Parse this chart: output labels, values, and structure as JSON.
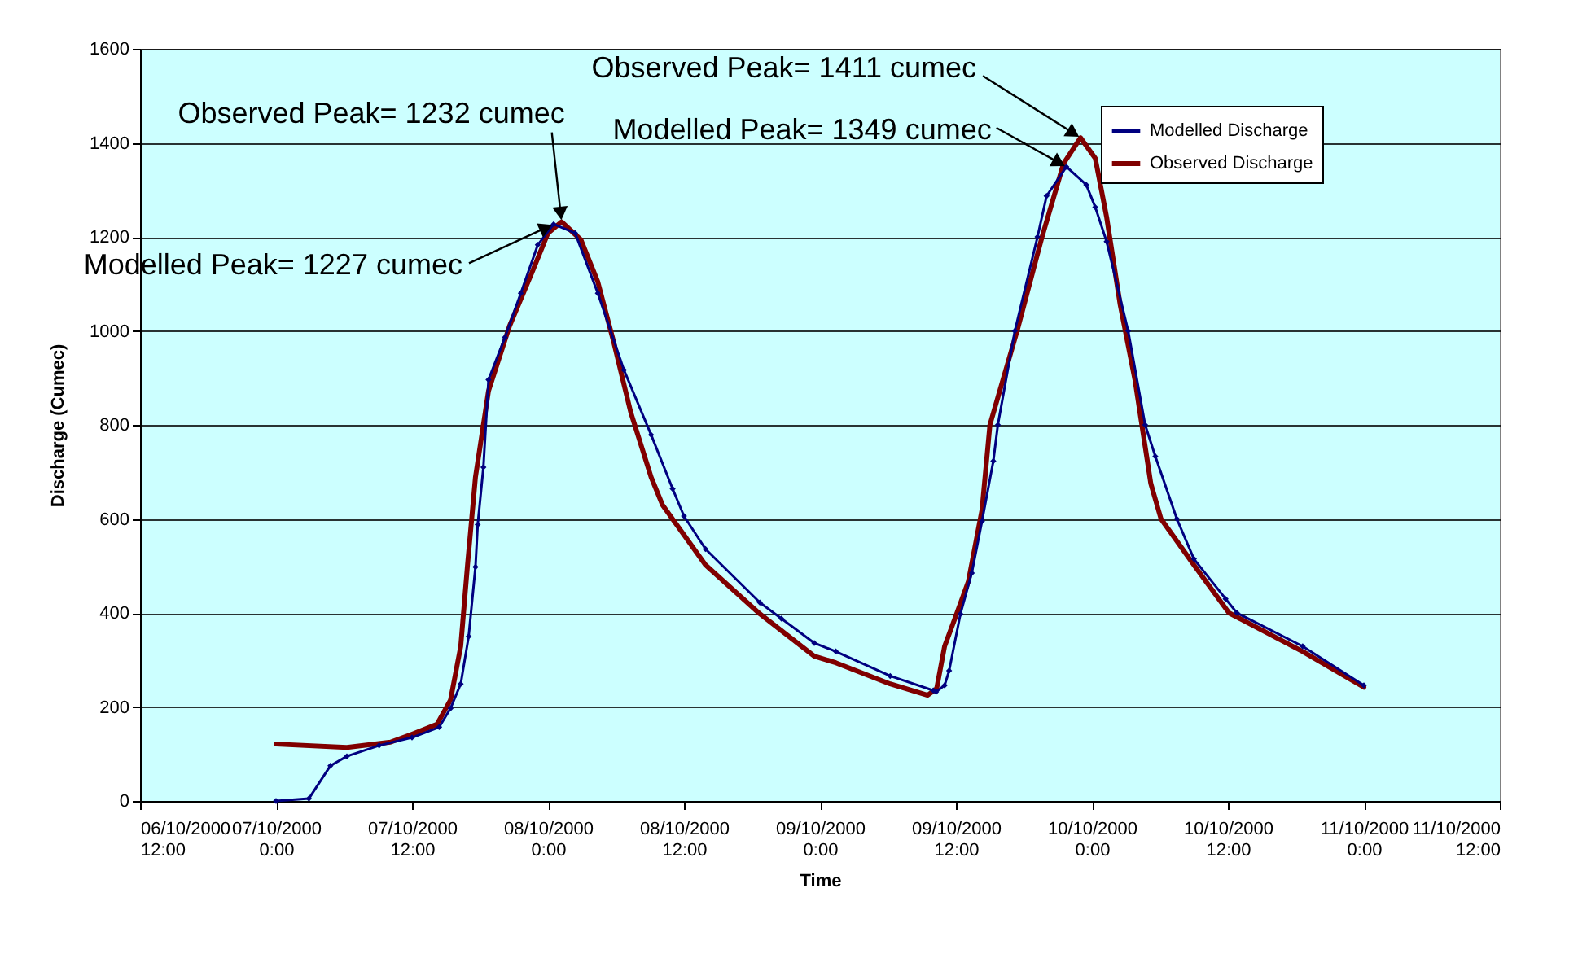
{
  "chart_data": {
    "type": "line",
    "xlabel": "Time",
    "ylabel": "Discharge (Cumec)",
    "xlim": [
      "2000-10-06T12:00",
      "2000-10-11T12:00"
    ],
    "xticks": [
      {
        "value": "2000-10-06T12:00",
        "label": "06/10/2000\n12:00"
      },
      {
        "value": "2000-10-07T00:00",
        "label": "07/10/2000\n0:00"
      },
      {
        "value": "2000-10-07T12:00",
        "label": "07/10/2000\n12:00"
      },
      {
        "value": "2000-10-08T00:00",
        "label": "08/10/2000\n0:00"
      },
      {
        "value": "2000-10-08T12:00",
        "label": "08/10/2000\n12:00"
      },
      {
        "value": "2000-10-09T00:00",
        "label": "09/10/2000\n0:00"
      },
      {
        "value": "2000-10-09T12:00",
        "label": "09/10/2000\n12:00"
      },
      {
        "value": "2000-10-10T00:00",
        "label": "10/10/2000\n0:00"
      },
      {
        "value": "2000-10-10T12:00",
        "label": "10/10/2000\n12:00"
      },
      {
        "value": "2000-10-11T00:00",
        "label": "11/10/2000\n0:00"
      },
      {
        "value": "2000-10-11T12:00",
        "label": "11/10/2000\n12:00"
      }
    ],
    "ylim": [
      0,
      1600
    ],
    "yticks": [
      0,
      200,
      400,
      600,
      800,
      1000,
      1200,
      1400,
      1600
    ],
    "grid": "y",
    "legend": "top right",
    "series": [
      {
        "name": "Modelled Discharge",
        "color": "#000080",
        "marker": "diamond",
        "x": [
          "2000-10-07T00:00",
          "2000-10-07T02:54",
          "2000-10-07T04:48",
          "2000-10-07T06:15",
          "2000-10-07T09:06",
          "2000-10-07T12:00",
          "2000-10-07T14:24",
          "2000-10-07T15:24",
          "2000-10-07T16:18",
          "2000-10-07T17:00",
          "2000-10-07T17:36",
          "2000-10-07T17:48",
          "2000-10-07T18:18",
          "2000-10-07T18:45",
          "2000-10-07T20:12",
          "2000-10-07T21:36",
          "2000-10-07T23:06",
          "2000-10-08T00:30",
          "2000-10-08T02:24",
          "2000-10-08T04:24",
          "2000-10-08T06:42",
          "2000-10-08T09:06",
          "2000-10-08T11:00",
          "2000-10-08T12:00",
          "2000-10-08T13:54",
          "2000-10-08T18:42",
          "2000-10-08T20:36",
          "2000-10-08T23:30",
          "2000-10-09T01:24",
          "2000-10-09T06:12",
          "2000-10-09T10:00",
          "2000-10-09T10:15",
          "2000-10-09T11:00",
          "2000-10-09T11:24",
          "2000-10-09T12:24",
          "2000-10-09T13:24",
          "2000-10-09T14:18",
          "2000-10-09T15:18",
          "2000-10-09T15:42",
          "2000-10-09T17:12",
          "2000-10-09T19:12",
          "2000-10-09T20:00",
          "2000-10-09T21:45",
          "2000-10-09T23:30",
          "2000-10-10T00:18",
          "2000-10-10T01:18",
          "2000-10-10T03:12",
          "2000-10-10T04:42",
          "2000-10-10T05:36",
          "2000-10-10T07:30",
          "2000-10-10T09:00",
          "2000-10-10T11:48",
          "2000-10-10T12:48",
          "2000-10-10T18:36",
          "2000-10-11T00:00"
        ],
        "values": [
          0,
          5,
          75,
          95,
          118,
          135,
          157,
          197,
          249,
          350,
          498,
          588,
          710,
          896,
          986,
          1080,
          1183,
          1227,
          1208,
          1080,
          917,
          779,
          664,
          606,
          536,
          422,
          388,
          336,
          318,
          266,
          235,
          232,
          246,
          277,
          398,
          485,
          595,
          723,
          800,
          1000,
          1200,
          1287,
          1349,
          1311,
          1263,
          1190,
          1000,
          800,
          733,
          600,
          515,
          430,
          400,
          329,
          246
        ]
      },
      {
        "name": "Observed Discharge",
        "color": "#800000",
        "x": [
          "2000-10-07T00:00",
          "2000-10-07T06:15",
          "2000-10-07T10:06",
          "2000-10-07T12:00",
          "2000-10-07T14:12",
          "2000-10-07T15:24",
          "2000-10-07T16:18",
          "2000-10-07T16:54",
          "2000-10-07T17:36",
          "2000-10-07T18:45",
          "2000-10-07T20:36",
          "2000-10-07T22:36",
          "2000-10-08T00:00",
          "2000-10-08T01:12",
          "2000-10-08T02:54",
          "2000-10-08T04:24",
          "2000-10-08T05:48",
          "2000-10-08T07:18",
          "2000-10-08T09:06",
          "2000-10-08T10:06",
          "2000-10-08T13:54",
          "2000-10-08T18:42",
          "2000-10-08T23:30",
          "2000-10-09T01:24",
          "2000-10-09T06:12",
          "2000-10-09T09:30",
          "2000-10-09T10:18",
          "2000-10-09T11:00",
          "2000-10-09T12:00",
          "2000-10-09T13:06",
          "2000-10-09T14:18",
          "2000-10-09T15:00",
          "2000-10-09T17:24",
          "2000-10-09T19:36",
          "2000-10-09T21:30",
          "2000-10-09T23:00",
          "2000-10-10T00:18",
          "2000-10-10T01:18",
          "2000-10-10T02:30",
          "2000-10-10T03:48",
          "2000-10-10T05:12",
          "2000-10-10T06:06",
          "2000-10-10T09:00",
          "2000-10-10T12:06",
          "2000-10-10T18:36",
          "2000-10-11T00:00"
        ],
        "values": [
          121,
          114,
          125,
          142,
          163,
          215,
          329,
          502,
          689,
          872,
          1010,
          1125,
          1208,
          1232,
          1194,
          1104,
          976,
          827,
          689,
          630,
          502,
          398,
          308,
          294,
          249,
          225,
          239,
          329,
          394,
          467,
          619,
          800,
          1000,
          1200,
          1356,
          1411,
          1367,
          1242,
          1055,
          896,
          675,
          600,
          502,
          400,
          318,
          242
        ]
      }
    ],
    "annotations": [
      {
        "text": "Observed Peak= 1232 cumec",
        "x": "2000-10-08T01:12",
        "y": 1232
      },
      {
        "text": "Modelled Peak= 1227 cumec",
        "x": "2000-10-08T00:30",
        "y": 1227
      },
      {
        "text": "Observed Peak= 1411 cumec",
        "x": "2000-10-09T23:00",
        "y": 1411
      },
      {
        "text": "Modelled Peak= 1349 cumec",
        "x": "2000-10-09T21:45",
        "y": 1349
      }
    ]
  }
}
